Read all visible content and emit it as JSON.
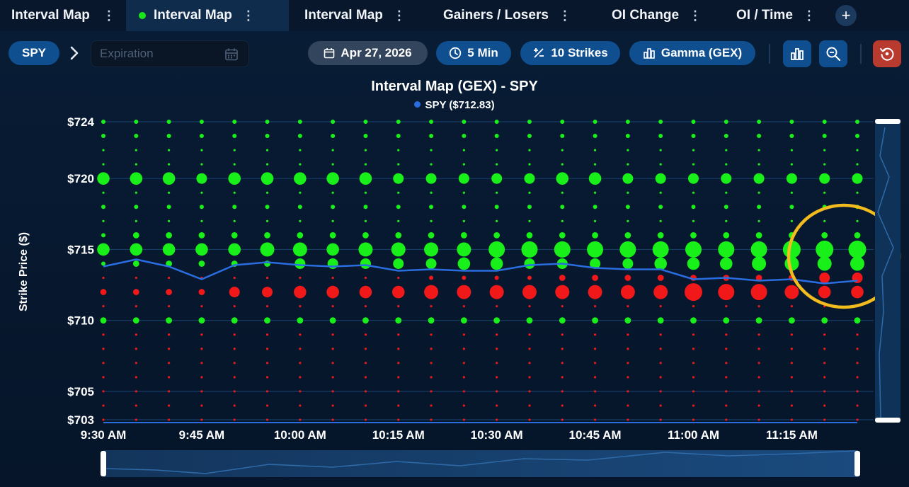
{
  "tabs": [
    {
      "label": "Interval Map",
      "active": false
    },
    {
      "label": "Interval Map",
      "active": true
    },
    {
      "label": "Interval Map",
      "active": false
    },
    {
      "label": "Gainers / Losers",
      "active": false
    },
    {
      "label": "OI Change",
      "active": false
    },
    {
      "label": "OI / Time",
      "active": false
    }
  ],
  "add_tab_label": "+",
  "toolbar": {
    "symbol": "SPY",
    "expiration_placeholder": "Expiration",
    "date": "Apr 27, 2026",
    "interval": "5 Min",
    "strikes": "10 Strikes",
    "greek": "Gamma (GEX)"
  },
  "colors": {
    "positive": "#19f019",
    "negative": "#f01818",
    "price_line": "#2a6de0",
    "accent": "#0f4e8f",
    "highlight_ring": "#f2bb1e"
  },
  "chart_data": {
    "type": "scatter",
    "title": "Interval Map (GEX) - SPY",
    "legend": [
      "SPY ($712.83)"
    ],
    "ylabel": "Strike Price ($)",
    "ylim": [
      703,
      724
    ],
    "y_ticks": [
      "$724",
      "$720",
      "$715",
      "$710",
      "$705",
      "$703"
    ],
    "y_tick_values": [
      724,
      720,
      715,
      710,
      705,
      703
    ],
    "x_tick_labels": [
      "9:30 AM",
      "9:45 AM",
      "10:00 AM",
      "10:15 AM",
      "10:30 AM",
      "10:45 AM",
      "11:00 AM",
      "11:15 AM"
    ],
    "x_tick_index": [
      0,
      3,
      6,
      9,
      12,
      15,
      18,
      21
    ],
    "x": [
      "9:30",
      "9:35",
      "9:40",
      "9:45",
      "9:50",
      "9:55",
      "10:00",
      "10:05",
      "10:10",
      "10:15",
      "10:20",
      "10:25",
      "10:30",
      "10:35",
      "10:40",
      "10:45",
      "10:50",
      "10:55",
      "11:00",
      "11:05",
      "11:10",
      "11:15",
      "11:20",
      "11:25"
    ],
    "price": [
      713.8,
      714.3,
      713.8,
      712.9,
      713.9,
      714.1,
      713.9,
      713.8,
      713.9,
      713.5,
      713.6,
      713.5,
      713.5,
      713.9,
      714.0,
      713.7,
      713.6,
      713.6,
      712.9,
      713.0,
      712.8,
      712.9,
      712.6,
      712.8
    ],
    "strikes": [
      724,
      723,
      722,
      721,
      720,
      719,
      718,
      717,
      716,
      715,
      714,
      713,
      712,
      711,
      710,
      709,
      708,
      707,
      706,
      705,
      704,
      703
    ],
    "gamma_sizes": {
      "724": [
        2,
        2,
        2,
        2,
        2,
        2,
        2,
        2,
        2,
        2,
        2,
        2,
        2,
        2,
        2,
        2,
        2,
        2,
        2,
        2,
        2,
        2,
        2,
        2
      ],
      "723": [
        2,
        2,
        2,
        2,
        2,
        2,
        2,
        2,
        2,
        2,
        2,
        2,
        2,
        2,
        2,
        2,
        2,
        2,
        2,
        2,
        2,
        2,
        2,
        2
      ],
      "722": [
        1,
        1,
        1,
        1,
        1,
        1,
        1,
        1,
        1,
        1,
        1,
        1,
        1,
        1,
        1,
        1,
        1,
        1,
        1,
        1,
        1,
        1,
        1,
        1
      ],
      "721": [
        1,
        1,
        1,
        1,
        1,
        1,
        1,
        1,
        1,
        1,
        1,
        1,
        1,
        1,
        1,
        1,
        1,
        1,
        1,
        1,
        1,
        1,
        1,
        1
      ],
      "720": [
        5,
        5,
        5,
        4,
        5,
        5,
        5,
        5,
        5,
        4,
        4,
        4,
        4,
        4,
        5,
        5,
        4,
        4,
        4,
        4,
        4,
        4,
        4,
        4
      ],
      "719": [
        1,
        1,
        1,
        1,
        1,
        1,
        1,
        1,
        1,
        1,
        1,
        1,
        1,
        1,
        1,
        1,
        1,
        1,
        1,
        1,
        1,
        1,
        1,
        1
      ],
      "718": [
        2,
        2,
        2,
        2,
        2,
        2,
        2,
        2,
        2,
        2,
        2,
        2,
        2,
        2,
        2,
        2,
        2,
        2,
        2,
        2,
        2,
        2,
        2,
        2
      ],
      "717": [
        1,
        1,
        1,
        1,
        1,
        1,
        1,
        1,
        1,
        1,
        1,
        1,
        1,
        1,
        1,
        1,
        1,
        1,
        1,
        1,
        1,
        1,
        1,
        1
      ],
      "716": [
        2,
        3,
        3,
        3,
        3,
        3,
        3,
        3,
        3,
        3,
        3,
        3,
        3,
        3,
        3,
        3,
        3,
        3,
        3,
        3,
        3,
        3,
        3,
        3
      ],
      "715": [
        5,
        5,
        5,
        5,
        5,
        6,
        6,
        5,
        6,
        6,
        6,
        6,
        7,
        7,
        7,
        7,
        7,
        7,
        7,
        7,
        7,
        8,
        8,
        8
      ],
      "714": [
        2,
        3,
        3,
        3,
        3,
        3,
        4,
        4,
        4,
        4,
        4,
        5,
        5,
        4,
        4,
        4,
        4,
        5,
        5,
        5,
        6,
        6,
        6,
        6
      ],
      "713": [
        -1,
        -1,
        -1,
        -1,
        -1,
        -1,
        -1,
        -1,
        -1,
        -1,
        -2,
        -2,
        -2,
        -2,
        -3,
        -3,
        -3,
        -3,
        -3,
        -3,
        -3,
        -3,
        -4,
        -4
      ],
      "712": [
        -3,
        -3,
        -3,
        -3,
        -4,
        -4,
        -5,
        -5,
        -5,
        -5,
        -6,
        -6,
        -6,
        -6,
        -6,
        -6,
        -6,
        -6,
        -8,
        -7,
        -7,
        -6,
        -5,
        -5
      ],
      "711": [
        -1,
        -1,
        -1,
        -1,
        -1,
        -1,
        -1,
        -1,
        -1,
        -1,
        -1,
        -1,
        -1,
        -1,
        -1,
        -1,
        -1,
        -1,
        -1,
        -1,
        -1,
        -1,
        -1,
        -1
      ],
      "710": [
        3,
        3,
        3,
        3,
        3,
        3,
        3,
        3,
        3,
        3,
        3,
        3,
        3,
        3,
        3,
        3,
        3,
        3,
        3,
        3,
        3,
        3,
        3,
        3
      ],
      "709": [
        -1,
        -1,
        -1,
        -1,
        -1,
        -1,
        -1,
        -1,
        -1,
        -1,
        -1,
        -1,
        -1,
        -1,
        -1,
        -1,
        -1,
        -1,
        -1,
        -1,
        -1,
        -1,
        -1,
        -1
      ],
      "708": [
        -1,
        -1,
        -1,
        -1,
        -1,
        -1,
        -1,
        -1,
        -1,
        -1,
        -1,
        -1,
        -1,
        -1,
        -1,
        -1,
        -1,
        -1,
        -1,
        -1,
        -1,
        -1,
        -1,
        -1
      ],
      "707": [
        -1,
        -1,
        -1,
        -1,
        -1,
        -1,
        -1,
        -1,
        -1,
        -1,
        -1,
        -1,
        -1,
        -1,
        -1,
        -1,
        -1,
        -1,
        -1,
        -1,
        -1,
        -1,
        -1,
        -1
      ],
      "706": [
        -1,
        -1,
        -1,
        -1,
        -1,
        -1,
        -1,
        -1,
        -1,
        -1,
        -1,
        -1,
        -1,
        -1,
        -1,
        -1,
        -1,
        -1,
        -1,
        -1,
        -1,
        -1,
        -1,
        -1
      ],
      "705": [
        -1,
        -1,
        -1,
        -1,
        -1,
        -1,
        -1,
        -1,
        -1,
        -1,
        -1,
        -1,
        -1,
        -1,
        -1,
        -1,
        -1,
        -1,
        -1,
        -1,
        -1,
        -1,
        -1,
        -1
      ],
      "704": [
        -1,
        -1,
        -1,
        -1,
        -1,
        -1,
        -1,
        -1,
        -1,
        -1,
        -1,
        -1,
        -1,
        -1,
        -1,
        -1,
        -1,
        -1,
        -1,
        -1,
        -1,
        -1,
        -1,
        -1
      ],
      "703": [
        -1,
        -1,
        -1,
        -1,
        -1,
        -1,
        -1,
        -1,
        -1,
        -1,
        -1,
        -1,
        -1,
        -1,
        -1,
        -1,
        -1,
        -1,
        -1,
        -1,
        -1,
        -1,
        -1,
        -1
      ]
    },
    "grid": true,
    "legend_position": "top-center"
  }
}
